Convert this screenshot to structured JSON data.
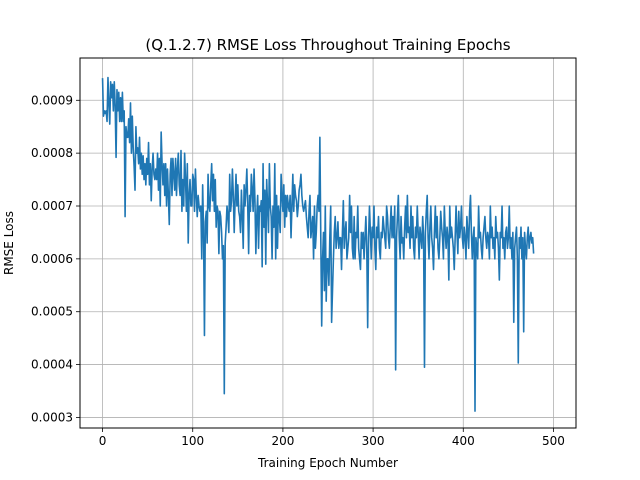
{
  "chart_data": {
    "type": "line",
    "title": "(Q.1.2.7) RMSE Loss Throughout Training Epochs",
    "xlabel": "Training Epoch Number",
    "ylabel": "RMSE Loss",
    "xlim": [
      -25,
      525
    ],
    "ylim": [
      0.00028,
      0.00098
    ],
    "xticks": [
      0,
      100,
      200,
      300,
      400,
      500
    ],
    "xtick_labels": [
      "0",
      "100",
      "200",
      "300",
      "400",
      "500"
    ],
    "yticks": [
      0.0003,
      0.0004,
      0.0005,
      0.0006,
      0.0007,
      0.0008,
      0.0009
    ],
    "ytick_labels": [
      "0.0003",
      "0.0004",
      "0.0005",
      "0.0006",
      "0.0007",
      "0.0008",
      "0.0009"
    ],
    "grid": true,
    "line_color": "#1f77b4",
    "series": [
      {
        "name": "",
        "x_start": 0,
        "x_step": 1,
        "y": [
          0.000942,
          0.00087,
          0.00088,
          0.000875,
          0.00088,
          0.00086,
          0.000943,
          0.000895,
          0.000855,
          0.000935,
          0.000905,
          0.00093,
          0.00088,
          0.000935,
          0.00089,
          0.000792,
          0.00092,
          0.00088,
          0.000915,
          0.00086,
          0.000905,
          0.00086,
          0.000915,
          0.00086,
          0.00088,
          0.00068,
          0.00085,
          0.00083,
          0.00083,
          0.000865,
          0.00082,
          0.000895,
          0.0008,
          0.00087,
          0.00081,
          0.000775,
          0.00073,
          0.00085,
          0.0008,
          0.00081,
          0.00078,
          0.00083,
          0.00077,
          0.0008,
          0.00076,
          0.000795,
          0.00075,
          0.00078,
          0.00074,
          0.00079,
          0.00076,
          0.00082,
          0.00074,
          0.00078,
          0.00071,
          0.00077,
          0.0008,
          0.00076,
          0.00075,
          0.00077,
          0.00075,
          0.0008,
          0.00073,
          0.00079,
          0.0007,
          0.00084,
          0.00078,
          0.00074,
          0.00078,
          0.00072,
          0.00078,
          0.0007,
          0.00077,
          0.00072,
          0.000665,
          0.00076,
          0.00079,
          0.00072,
          0.00079,
          0.00076,
          0.00073,
          0.00079,
          0.00072,
          0.00077,
          0.0008,
          0.00074,
          0.00072,
          0.000805,
          0.00069,
          0.00075,
          0.0007,
          0.0008,
          0.00075,
          0.00069,
          0.00078,
          0.00063,
          0.00072,
          0.00075,
          0.0007,
          0.0007,
          0.00076,
          0.00075,
          0.00069,
          0.00077,
          0.00072,
          0.00068,
          0.00072,
          0.0007,
          0.00069,
          0.0007,
          0.0006,
          0.00074,
          0.000655,
          0.000455,
          0.00067,
          0.00069,
          0.00063,
          0.00076,
          0.0007,
          0.00069,
          0.00074,
          0.00078,
          0.00071,
          0.00076,
          0.00069,
          0.00075,
          0.00066,
          0.0007,
          0.00069,
          0.00061,
          0.00069,
          0.00068,
          0.00065,
          0.0006,
          0.000625,
          0.000345,
          0.00063,
          0.00066,
          0.0007,
          0.00068,
          0.00065,
          0.00076,
          0.00069,
          0.00071,
          0.00077,
          0.00072,
          0.00065,
          0.00071,
          0.00076,
          0.0007,
          0.00074,
          0.00069,
          0.00068,
          0.00065,
          0.00073,
          0.00068,
          0.00062,
          0.00074,
          0.0007,
          0.00073,
          0.00077,
          0.0007,
          0.00061,
          0.00072,
          0.00069,
          0.00076,
          0.00073,
          0.00069,
          0.00077,
          0.00071,
          0.00061,
          0.00068,
          0.00072,
          0.00062,
          0.0007,
          0.00069,
          0.00071,
          0.000585,
          0.00078,
          0.00066,
          0.00073,
          0.00059,
          0.00075,
          0.0007,
          0.00065,
          0.00078,
          0.0007,
          0.00068,
          0.0006,
          0.0007,
          0.00066,
          0.00078,
          0.0006,
          0.00072,
          0.00062,
          0.0007,
          0.00068,
          0.00065,
          0.00076,
          0.00072,
          0.00069,
          0.00074,
          0.00066,
          0.00072,
          0.00068,
          0.00072,
          0.0007,
          0.00069,
          0.00072,
          0.00064,
          0.0007,
          0.00076,
          0.00069,
          0.00074,
          0.00072,
          0.00071,
          0.00068,
          0.0007,
          0.00073,
          0.00074,
          0.00076,
          0.00072,
          0.0007,
          0.00069,
          0.0007,
          0.00071,
          0.00068,
          0.00066,
          0.00064,
          0.00069,
          0.00072,
          0.00064,
          0.00066,
          0.00068,
          0.0006,
          0.0007,
          0.00062,
          0.00065,
          0.0007,
          0.00072,
          0.00069,
          0.00083,
          0.00064,
          0.000473,
          0.0006,
          0.00065,
          0.00054,
          0.0007,
          0.00052,
          0.0006,
          0.0006,
          0.00055,
          0.00064,
          0.0007,
          0.00048,
          0.00054,
          0.0006,
          0.00065,
          0.00068,
          0.00062,
          0.00064,
          0.00067,
          0.00062,
          0.00064,
          0.00064,
          0.00058,
          0.00065,
          0.00071,
          0.00062,
          0.00065,
          0.00067,
          0.0006,
          0.00062,
          0.00064,
          0.00072,
          0.00065,
          0.0007,
          0.00062,
          0.0006,
          0.00068,
          0.0006,
          0.00065,
          0.00064,
          0.0007,
          0.00062,
          0.0006,
          0.00058,
          0.00065,
          0.00062,
          0.00065,
          0.0006,
          0.00064,
          0.00068,
          0.00062,
          0.00047,
          0.00064,
          0.0007,
          0.00065,
          0.0006,
          0.00066,
          0.00064,
          0.0007,
          0.00062,
          0.00058,
          0.00066,
          0.00064,
          0.00068,
          0.00062,
          0.0006,
          0.00065,
          0.00064,
          0.00068,
          0.00066,
          0.00064,
          0.00062,
          0.0007,
          0.00068,
          0.00064,
          0.00062,
          0.00066,
          0.0007,
          0.00064,
          0.00068,
          0.00064,
          0.0007,
          0.00039,
          0.00064,
          0.00068,
          0.00072,
          0.00064,
          0.0006,
          0.00068,
          0.00063,
          0.00064,
          0.0006,
          0.00066,
          0.0007,
          0.00064,
          0.00072,
          0.00065,
          0.00066,
          0.00062,
          0.0007,
          0.00064,
          0.00068,
          0.00062,
          0.0006,
          0.00066,
          0.00064,
          0.0007,
          0.00065,
          0.0006,
          0.00066,
          0.00064,
          0.00062,
          0.00068,
          0.00064,
          0.000395,
          0.00065,
          0.00069,
          0.00072,
          0.00064,
          0.0006,
          0.00066,
          0.0007,
          0.00064,
          0.00062,
          0.00058,
          0.00065,
          0.0007,
          0.00064,
          0.00068,
          0.00062,
          0.0006,
          0.00064,
          0.00069,
          0.00066,
          0.00064,
          0.0006,
          0.0007,
          0.00065,
          0.00062,
          0.00066,
          0.00064,
          0.00056,
          0.0007,
          0.00064,
          0.00066,
          0.00064,
          0.00062,
          0.00058,
          0.00064,
          0.0007,
          0.00065,
          0.00061,
          0.00069,
          0.00064,
          0.00066,
          0.0007,
          0.00064,
          0.00062,
          0.00066,
          0.00064,
          0.0006,
          0.00068,
          0.00065,
          0.00062,
          0.00069,
          0.00072,
          0.00065,
          0.0006,
          0.00064,
          0.00066,
          0.000312,
          0.00064,
          0.00062,
          0.0006,
          0.0007,
          0.00064,
          0.00065,
          0.00062,
          0.0006,
          0.00064,
          0.00066,
          0.00068,
          0.00064,
          0.00062,
          0.00065,
          0.00064,
          0.0006,
          0.0007,
          0.00064,
          0.00066,
          0.00062,
          0.00064,
          0.0006,
          0.00068,
          0.00064,
          0.00065,
          0.00062,
          0.00056,
          0.00065,
          0.00064,
          0.0007,
          0.00062,
          0.00064,
          0.0006,
          0.00065,
          0.00066,
          0.00062,
          0.00064,
          0.0007,
          0.00062,
          0.00064,
          0.0006,
          0.00065,
          0.00048,
          0.00062,
          0.00064,
          0.00066,
          0.0006,
          0.000403,
          0.00064,
          0.00062,
          0.00066,
          0.0006,
          0.00064,
          0.000462,
          0.00065,
          0.00062,
          0.0006,
          0.00064,
          0.00066,
          0.00062,
          0.00064,
          0.00065,
          0.00063,
          0.00064,
          0.00061
        ]
      }
    ]
  }
}
